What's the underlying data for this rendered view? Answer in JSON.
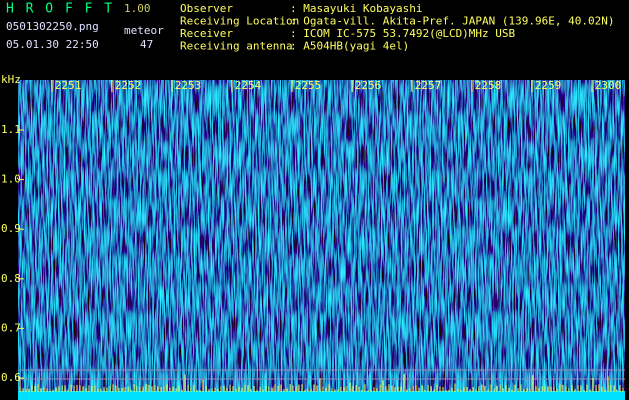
{
  "header": {
    "app": "H R O F F T",
    "version": "1.00",
    "file": "0501302250.png",
    "counter_label": "meteor",
    "timestamp": "05.01.30 22:50",
    "counter": "47",
    "info": [
      {
        "label": "Observer",
        "value": ": Masayuki Kobayashi"
      },
      {
        "label": "Receiving Location",
        "value": ": Ogata-vill. Akita-Pref. JAPAN (139.96E, 40.02N)"
      },
      {
        "label": "Receiver",
        "value": ": ICOM IC-575 53.7492(@LCD)MHz USB"
      },
      {
        "label": "Receiving antenna",
        "value": ": A504HB(yagi 4el)"
      }
    ]
  },
  "plot": {
    "unit": "kHz",
    "freq_ticks": [
      "1.1",
      "1.0",
      "0.9",
      "0.8",
      "0.7",
      "0.6"
    ],
    "time_ticks": [
      "2251",
      "2252",
      "2253",
      "2254",
      "2255",
      "2256",
      "2257",
      "2258",
      "2259",
      "2300"
    ]
  }
}
